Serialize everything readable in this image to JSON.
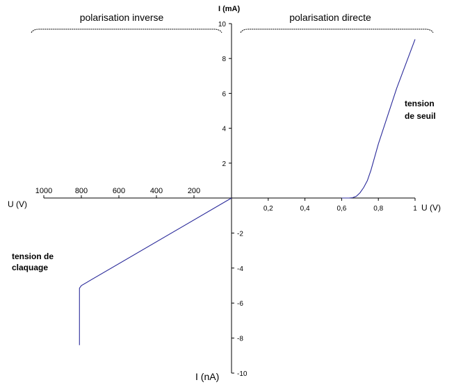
{
  "chart_data": {
    "type": "line",
    "headers": {
      "left": "polarisation inverse",
      "right": "polarisation directe"
    },
    "axes": {
      "y_top_label": "I (mA)",
      "y_bottom_label": "I (nA)",
      "x_left_label": "U (V)",
      "x_right_label": "U (V)"
    },
    "forward_x_ticks": [
      "0,2",
      "0,4",
      "0,6",
      "0,8",
      "1"
    ],
    "forward_x_values": [
      0.2,
      0.4,
      0.6,
      0.8,
      1.0
    ],
    "reverse_x_ticks": [
      "1000",
      "800",
      "600",
      "400",
      "200"
    ],
    "reverse_x_values": [
      1000,
      800,
      600,
      400,
      200
    ],
    "y_pos_ticks": [
      "2",
      "4",
      "6",
      "8",
      "10"
    ],
    "y_pos_values": [
      2,
      4,
      6,
      8,
      10
    ],
    "y_neg_ticks": [
      "-2",
      "-4",
      "-6",
      "-8",
      "-10"
    ],
    "y_neg_values": [
      -2,
      -4,
      -6,
      -8,
      -10
    ],
    "forward_xlim": [
      0,
      1
    ],
    "reverse_xlim": [
      0,
      1000
    ],
    "forward_ylim": [
      0,
      10
    ],
    "reverse_ylim": [
      0,
      -10
    ],
    "annotations": {
      "seuil_line1": "tension",
      "seuil_line2": "de seuil",
      "claquage_line1": "tension de",
      "claquage_line2": "claquage"
    },
    "series": [
      {
        "quadrant": "forward",
        "points": [
          [
            0.6,
            0
          ],
          [
            0.64,
            0
          ],
          [
            0.66,
            0.02
          ],
          [
            0.68,
            0.1
          ],
          [
            0.7,
            0.3
          ],
          [
            0.72,
            0.6
          ],
          [
            0.74,
            1.0
          ],
          [
            0.76,
            1.6
          ],
          [
            0.8,
            3.1
          ],
          [
            0.9,
            6.3
          ],
          [
            1.0,
            9.1
          ]
        ]
      },
      {
        "quadrant": "reverse",
        "points": [
          [
            0,
            0
          ],
          [
            800,
            -5.0
          ],
          [
            810,
            -5.15
          ],
          [
            810,
            -5.5
          ],
          [
            810,
            -8.4
          ]
        ]
      }
    ],
    "colors": {
      "curve": "#2a2a9a",
      "axis": "#000000"
    }
  }
}
